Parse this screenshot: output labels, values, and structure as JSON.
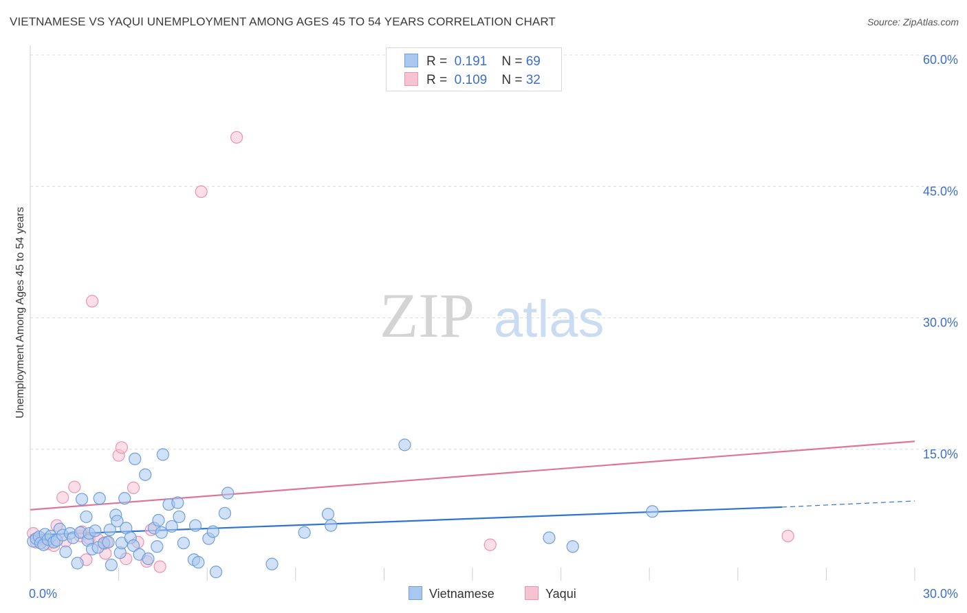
{
  "title": "VIETNAMESE VS YAQUI UNEMPLOYMENT AMONG AGES 45 TO 54 YEARS CORRELATION CHART",
  "source": "Source: ZipAtlas.com",
  "watermark": {
    "zip": "ZIP",
    "atlas": "atlas"
  },
  "legend": {
    "rows": [
      {
        "r_label": "R =",
        "r_value": "0.191",
        "n_label": "N =",
        "n_value": "69"
      },
      {
        "r_label": "R =",
        "r_value": "0.109",
        "n_label": "N =",
        "n_value": "32"
      }
    ]
  },
  "colors": {
    "vietnamese_fill": "#a9c8f0",
    "vietnamese_stroke": "#6f9fd8",
    "vietnamese_line": "#2f74d0",
    "yaqui_fill": "#f7c3d3",
    "yaqui_stroke": "#ea94b0",
    "yaqui_line": "#e0739a",
    "grid": "#dcdcdc",
    "tick_label": "#3b6fc9"
  },
  "chart_data": {
    "type": "scatter",
    "title": "VIETNAMESE VS YAQUI UNEMPLOYMENT AMONG AGES 45 TO 54 YEARS CORRELATION CHART",
    "xlabel": "",
    "ylabel": "Unemployment Among Ages 45 to 54 years",
    "xlim": [
      0,
      30
    ],
    "ylim": [
      0,
      60
    ],
    "x_tick_labels": [
      "0.0%",
      "30.0%"
    ],
    "y_ticks": [
      15,
      30,
      45,
      60
    ],
    "y_tick_labels": [
      "15.0%",
      "30.0%",
      "45.0%",
      "60.0%"
    ],
    "legend_position": "bottom-center",
    "series": [
      {
        "name": "Vietnamese",
        "r": 0.191,
        "n": 69,
        "trend": {
          "x0": 0,
          "y0": 5.2,
          "x1": 25.5,
          "y1": 8.4,
          "dash_to_x": 30,
          "dash_to_y": 9.1
        },
        "points": [
          [
            0.1,
            4.5
          ],
          [
            0.2,
            4.8
          ],
          [
            0.3,
            5.0
          ],
          [
            0.35,
            4.3
          ],
          [
            0.45,
            4.1
          ],
          [
            0.5,
            5.3
          ],
          [
            0.6,
            4.7
          ],
          [
            0.7,
            5.1
          ],
          [
            0.8,
            4.4
          ],
          [
            0.9,
            4.6
          ],
          [
            1.0,
            5.9
          ],
          [
            1.1,
            5.2
          ],
          [
            1.2,
            3.3
          ],
          [
            1.35,
            5.4
          ],
          [
            1.45,
            4.9
          ],
          [
            1.6,
            2.0
          ],
          [
            1.7,
            5.5
          ],
          [
            1.75,
            9.3
          ],
          [
            1.9,
            7.3
          ],
          [
            1.95,
            4.6
          ],
          [
            2.0,
            5.4
          ],
          [
            2.1,
            3.6
          ],
          [
            2.2,
            5.7
          ],
          [
            2.3,
            3.8
          ],
          [
            2.35,
            9.4
          ],
          [
            2.5,
            4.3
          ],
          [
            2.65,
            4.4
          ],
          [
            2.7,
            5.8
          ],
          [
            2.75,
            1.8
          ],
          [
            2.9,
            7.5
          ],
          [
            2.95,
            6.8
          ],
          [
            3.05,
            3.2
          ],
          [
            3.1,
            4.3
          ],
          [
            3.2,
            9.4
          ],
          [
            3.25,
            6.0
          ],
          [
            3.4,
            4.9
          ],
          [
            3.5,
            4.0
          ],
          [
            3.55,
            13.9
          ],
          [
            3.7,
            3.0
          ],
          [
            3.9,
            12.1
          ],
          [
            4.0,
            2.5
          ],
          [
            4.2,
            6.0
          ],
          [
            4.3,
            3.9
          ],
          [
            4.35,
            6.9
          ],
          [
            4.45,
            5.5
          ],
          [
            4.5,
            14.4
          ],
          [
            4.7,
            8.7
          ],
          [
            4.8,
            6.2
          ],
          [
            5.0,
            8.9
          ],
          [
            5.05,
            7.3
          ],
          [
            5.2,
            4.3
          ],
          [
            5.55,
            2.4
          ],
          [
            5.6,
            6.3
          ],
          [
            5.7,
            2.1
          ],
          [
            6.05,
            4.8
          ],
          [
            6.2,
            5.6
          ],
          [
            6.3,
            1.0
          ],
          [
            6.6,
            7.7
          ],
          [
            6.7,
            10.0
          ],
          [
            8.2,
            1.9
          ],
          [
            9.3,
            5.5
          ],
          [
            10.1,
            7.6
          ],
          [
            10.2,
            6.3
          ],
          [
            12.7,
            15.5
          ],
          [
            17.6,
            4.9
          ],
          [
            18.4,
            3.9
          ],
          [
            21.1,
            7.9
          ]
        ]
      },
      {
        "name": "Yaqui",
        "r": 0.109,
        "n": 32,
        "trend": {
          "x0": 0,
          "y0": 8.1,
          "x1": 30,
          "y1": 15.9
        },
        "points": [
          [
            0.1,
            5.4
          ],
          [
            0.2,
            4.4
          ],
          [
            0.4,
            4.8
          ],
          [
            0.6,
            4.2
          ],
          [
            0.8,
            4.0
          ],
          [
            0.9,
            6.3
          ],
          [
            1.1,
            9.5
          ],
          [
            1.2,
            4.5
          ],
          [
            1.5,
            10.7
          ],
          [
            1.7,
            5.1
          ],
          [
            1.75,
            5.6
          ],
          [
            1.9,
            2.4
          ],
          [
            2.0,
            4.8
          ],
          [
            2.1,
            31.9
          ],
          [
            2.3,
            4.7
          ],
          [
            2.5,
            4.2
          ],
          [
            2.55,
            3.1
          ],
          [
            2.6,
            4.4
          ],
          [
            3.0,
            14.3
          ],
          [
            3.1,
            15.2
          ],
          [
            3.25,
            2.5
          ],
          [
            3.5,
            10.6
          ],
          [
            3.65,
            4.4
          ],
          [
            3.95,
            2.2
          ],
          [
            4.1,
            5.8
          ],
          [
            4.4,
            1.6
          ],
          [
            5.8,
            44.4
          ],
          [
            7.0,
            50.6
          ],
          [
            15.6,
            4.1
          ],
          [
            25.7,
            5.1
          ]
        ]
      }
    ]
  }
}
